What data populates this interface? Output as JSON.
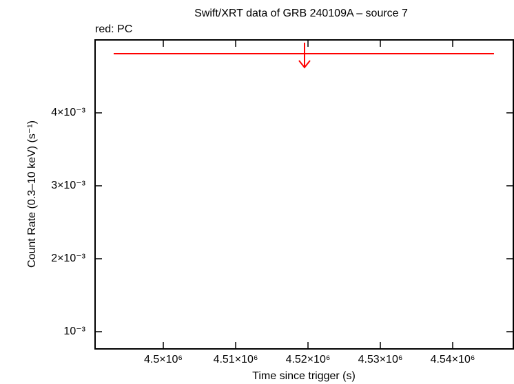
{
  "chart_data": {
    "type": "upper-limit",
    "title": "Swift/XRT data of GRB 240109A – source 7",
    "annotation": "red: PC",
    "x_label": "Time since trigger (s)",
    "y_label": "Count Rate (0.3–10 keV) (s⁻¹)",
    "xlim": [
      4490570,
      4548380
    ],
    "ylim": [
      0.000764,
      0.005
    ],
    "xticks": [
      {
        "value": 4500000,
        "label": "4.5×10⁶"
      },
      {
        "value": 4510000,
        "label": "4.51×10⁶"
      },
      {
        "value": 4520000,
        "label": "4.52×10⁶"
      },
      {
        "value": 4530000,
        "label": "4.53×10⁶"
      },
      {
        "value": 4540000,
        "label": "4.54×10⁶"
      }
    ],
    "yticks": [
      {
        "value": 0.001,
        "label": "10⁻³"
      },
      {
        "value": 0.002,
        "label": "2×10⁻³"
      },
      {
        "value": 0.003,
        "label": "3×10⁻³"
      },
      {
        "value": 0.004,
        "label": "4×10⁻³"
      }
    ],
    "series": [
      {
        "color": "#ff0000",
        "x": [
          4519520
        ],
        "x_start": [
          4493140
        ],
        "x_end": [
          4545710
        ],
        "values": [
          0.004811
        ]
      }
    ]
  }
}
